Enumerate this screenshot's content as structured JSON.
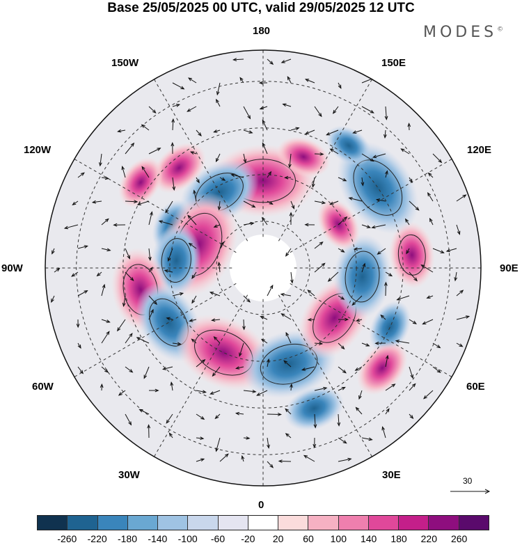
{
  "title": "Base 25/05/2025 00 UTC, valid 29/05/2025 12 UTC",
  "brand": "MODES",
  "brand_mark": "©",
  "longitude_labels": {
    "top": "180",
    "bottom": "0",
    "left": "90W",
    "right": "90E",
    "upper_left_1": "150W",
    "upper_left_2": "120W",
    "lower_left_1": "60W",
    "lower_left_2": "30W",
    "upper_right_1": "150E",
    "upper_right_2": "120E",
    "lower_right_1": "60E",
    "lower_right_2": "30E"
  },
  "reference_vector": "30",
  "colorbar": {
    "colors": [
      "#10324f",
      "#1f6391",
      "#3a85bb",
      "#6aa8d2",
      "#9fc3e3",
      "#c9d7ec",
      "#e5e5f1",
      "#ffffff",
      "#fbdcdc",
      "#f6b1c3",
      "#ef7fae",
      "#e0489a",
      "#c41f8a",
      "#8e0e7e",
      "#5a0a6c"
    ],
    "labels": [
      "-260",
      "-220",
      "-180",
      "-140",
      "-100",
      "-60",
      "-20",
      "20",
      "60",
      "100",
      "140",
      "180",
      "220",
      "260"
    ]
  },
  "anomalies": [
    {
      "lon": 180,
      "lat": 62,
      "value": 240
    },
    {
      "lon": 160,
      "lat": 52,
      "value": 60
    },
    {
      "lon": -150,
      "lat": 62,
      "value": -160
    },
    {
      "lon": -140,
      "lat": 48,
      "value": 80
    },
    {
      "lon": -125,
      "lat": 42,
      "value": 60
    },
    {
      "lon": -115,
      "lat": 58,
      "value": -60
    },
    {
      "lon": -110,
      "lat": 68,
      "value": 240
    },
    {
      "lon": -95,
      "lat": 62,
      "value": -120
    },
    {
      "lon": -80,
      "lat": 50,
      "value": 160
    },
    {
      "lon": -60,
      "lat": 55,
      "value": -160
    },
    {
      "lon": -25,
      "lat": 60,
      "value": 220
    },
    {
      "lon": 15,
      "lat": 58,
      "value": -200
    },
    {
      "lon": 20,
      "lat": 42,
      "value": -80
    },
    {
      "lon": 55,
      "lat": 62,
      "value": 180
    },
    {
      "lon": 65,
      "lat": 45,
      "value": -60
    },
    {
      "lon": 50,
      "lat": 40,
      "value": 80
    },
    {
      "lon": 85,
      "lat": 58,
      "value": -160
    },
    {
      "lon": 95,
      "lat": 42,
      "value": 100
    },
    {
      "lon": 125,
      "lat": 45,
      "value": -220
    },
    {
      "lon": 120,
      "lat": 62,
      "value": 60
    },
    {
      "lon": 145,
      "lat": 42,
      "value": -40
    }
  ]
}
